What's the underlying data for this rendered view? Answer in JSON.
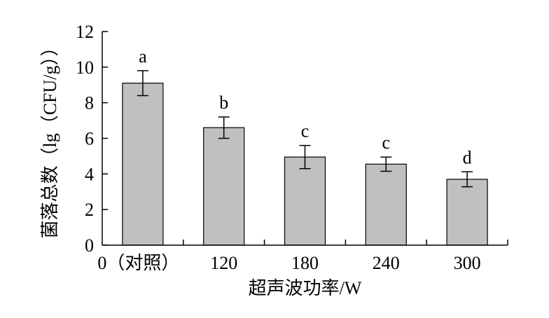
{
  "chart_data": {
    "type": "bar",
    "title": "",
    "categories": [
      "0（对照）",
      "120",
      "180",
      "240",
      "300"
    ],
    "values": [
      9.1,
      6.6,
      4.95,
      4.55,
      3.7
    ],
    "errors": [
      0.7,
      0.6,
      0.65,
      0.4,
      0.42
    ],
    "significance": [
      "a",
      "b",
      "c",
      "c",
      "d"
    ],
    "xlabel": "超声波功率/W",
    "ylabel": "菌落总数（lg（CFU/g））",
    "ylim": [
      0,
      12
    ],
    "yticks": [
      0,
      2,
      4,
      6,
      8,
      10,
      12
    ],
    "grid": false,
    "legend": "none",
    "bar_color": "#c0c0c0",
    "bar_edge_color": "#000000"
  }
}
